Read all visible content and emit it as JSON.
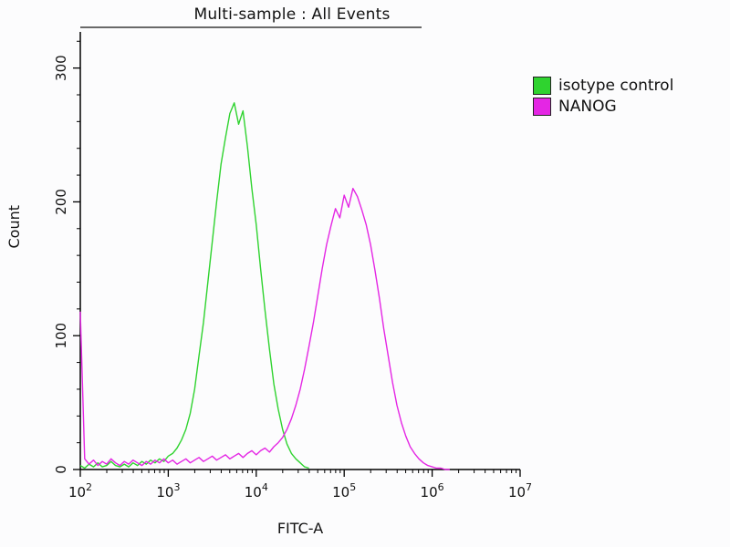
{
  "figure": {
    "title": "Multi-sample : All Events",
    "x_label": "FITC-A",
    "y_label": "Count",
    "legend": [
      {
        "label": "isotype control",
        "color": "#2fd32f"
      },
      {
        "label": "NANOG",
        "color": "#e426e4"
      }
    ]
  },
  "chart_data": {
    "type": "line",
    "subtype": "flow-cytometry-overlay-histogram",
    "title": "Multi-sample : All Events",
    "xlabel": "FITC-A",
    "ylabel": "Count",
    "x_scale": "log10",
    "x_range_exponents": [
      2,
      7
    ],
    "x_tick_exponents": [
      2,
      3,
      4,
      5,
      6,
      7
    ],
    "ylim": [
      0,
      327
    ],
    "y_major_ticks": [
      0,
      100,
      200,
      300
    ],
    "y_minor_tick_step": 20,
    "grid": false,
    "legend_position": "right",
    "series": [
      {
        "name": "isotype control",
        "color": "#2fd32f",
        "peak_x": 6000,
        "peak_count": 274,
        "x_log_start": 2.0,
        "x_log_step": 0.05,
        "counts": [
          3,
          1,
          4,
          2,
          5,
          2,
          3,
          6,
          3,
          2,
          4,
          2,
          5,
          3,
          6,
          4,
          7,
          5,
          8,
          6,
          10,
          12,
          16,
          22,
          30,
          42,
          60,
          85,
          110,
          140,
          170,
          200,
          228,
          248,
          266,
          274,
          258,
          268,
          241,
          210,
          183,
          150,
          119,
          90,
          64,
          45,
          30,
          19,
          12,
          8,
          5,
          2,
          1
        ]
      },
      {
        "name": "NANOG",
        "color": "#e426e4",
        "peak_x": 126000,
        "peak_count": 210,
        "x_log_start": 2.0,
        "x_log_step": 0.05,
        "counts": [
          118,
          8,
          4,
          7,
          3,
          6,
          4,
          8,
          5,
          3,
          6,
          4,
          7,
          5,
          3,
          6,
          4,
          7,
          5,
          8,
          5,
          7,
          4,
          6,
          8,
          5,
          7,
          9,
          6,
          8,
          10,
          7,
          9,
          11,
          8,
          10,
          12,
          9,
          12,
          14,
          11,
          14,
          16,
          13,
          17,
          20,
          24,
          30,
          38,
          48,
          60,
          75,
          92,
          110,
          130,
          150,
          168,
          182,
          195,
          188,
          205,
          196,
          210,
          204,
          194,
          183,
          168,
          149,
          128,
          105,
          85,
          65,
          48,
          35,
          25,
          17,
          12,
          8,
          5,
          3,
          2,
          1,
          1,
          0,
          0
        ]
      }
    ]
  }
}
